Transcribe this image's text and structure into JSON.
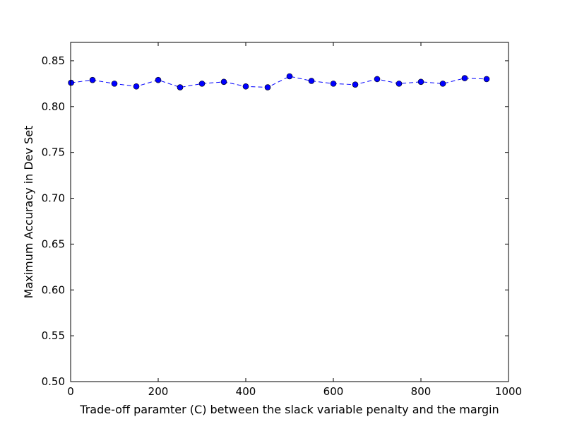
{
  "chart_data": {
    "type": "line",
    "xlabel": "Trade-off paramter (C) between the slack variable penalty and the margin",
    "ylabel": "Maximum Accuracy in Dev Set",
    "xlim": [
      0,
      1000
    ],
    "ylim": [
      0.5,
      0.87
    ],
    "x_ticks": [
      0,
      200,
      400,
      600,
      800,
      1000
    ],
    "y_ticks": [
      0.5,
      0.55,
      0.6,
      0.65,
      0.7,
      0.75,
      0.8,
      0.85
    ],
    "x_tick_labels": [
      "0",
      "200",
      "400",
      "600",
      "800",
      "1000"
    ],
    "y_tick_labels": [
      "0.50",
      "0.55",
      "0.60",
      "0.65",
      "0.70",
      "0.75",
      "0.80",
      "0.85"
    ],
    "grid": false,
    "series": [
      {
        "line_style": "dashed",
        "marker": "circle",
        "color": "#0000ff",
        "x": [
          1,
          50,
          100,
          150,
          200,
          250,
          300,
          350,
          400,
          450,
          500,
          550,
          600,
          650,
          700,
          750,
          800,
          850,
          900,
          950
        ],
        "y": [
          0.826,
          0.829,
          0.825,
          0.822,
          0.829,
          0.821,
          0.825,
          0.827,
          0.822,
          0.821,
          0.833,
          0.828,
          0.825,
          0.824,
          0.83,
          0.825,
          0.827,
          0.825,
          0.831,
          0.83
        ]
      }
    ]
  }
}
